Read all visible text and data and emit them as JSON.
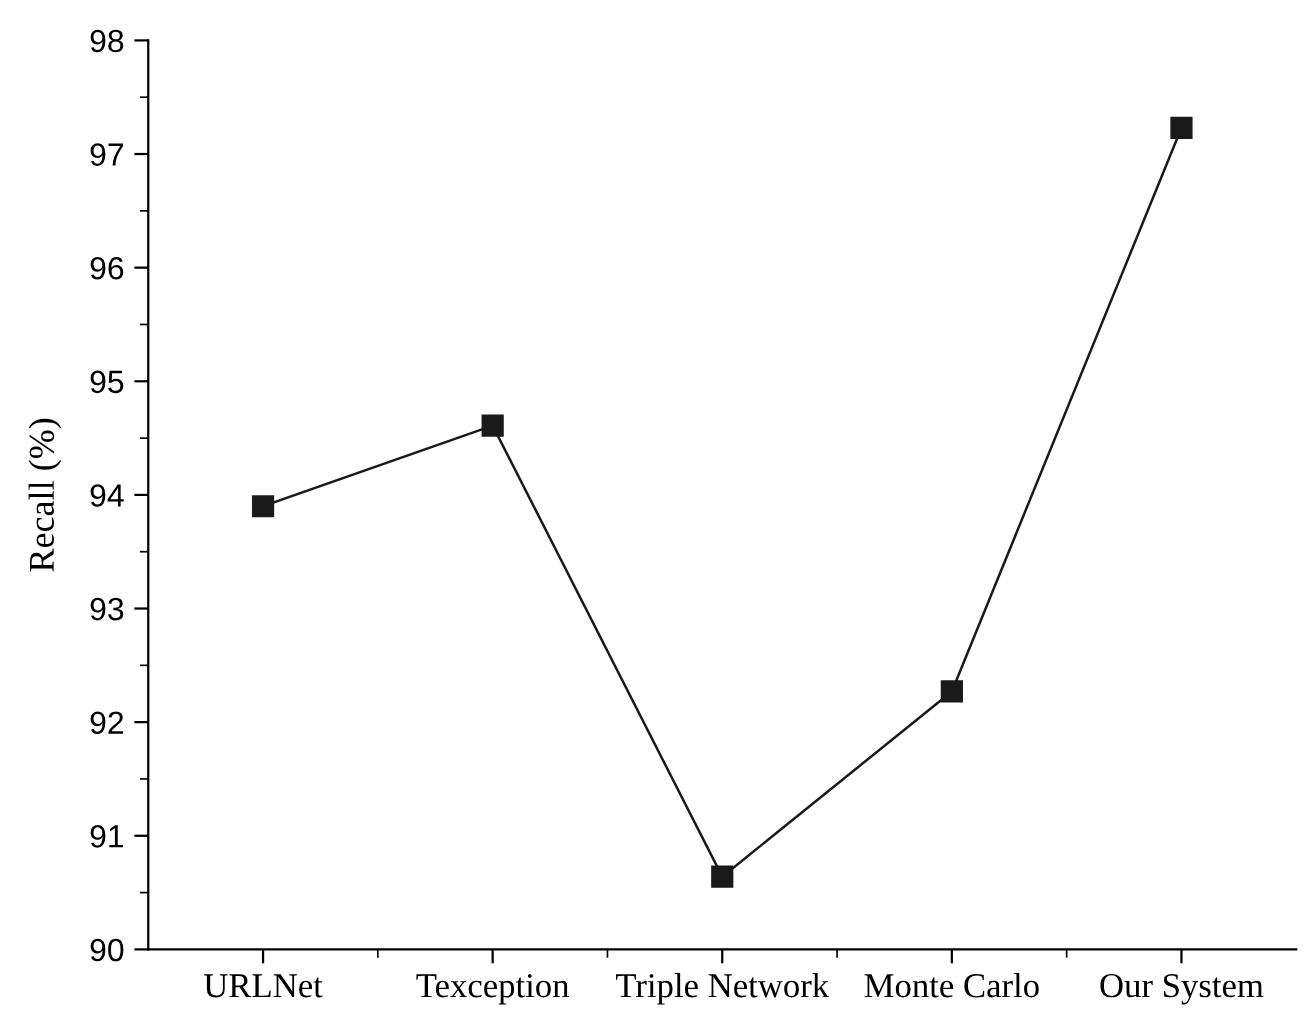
{
  "chart_data": {
    "type": "line",
    "ylabel": "Recall (%)",
    "categories": [
      "URLNet",
      "Texception",
      "Triple Network",
      "Monte Carlo",
      "Our System"
    ],
    "series": [
      {
        "color": "#1a1a1a",
        "values": [
          93.9,
          94.61,
          90.64,
          92.27,
          97.23
        ]
      }
    ],
    "ylim": [
      90,
      98
    ],
    "yticks": [
      90,
      91,
      92,
      93,
      94,
      95,
      96,
      97,
      98
    ],
    "marker": "square",
    "line_style": "solid"
  }
}
